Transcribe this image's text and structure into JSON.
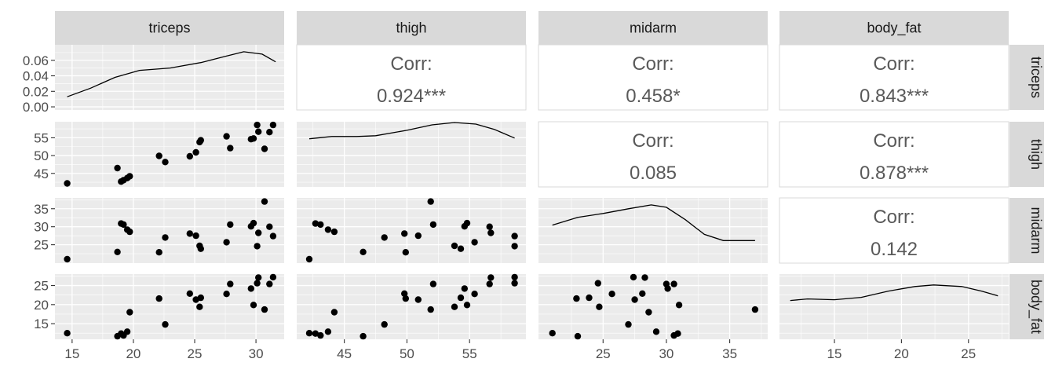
{
  "chart_data": {
    "type": "scatter",
    "title": "",
    "variables": [
      "triceps",
      "thigh",
      "midarm",
      "body_fat"
    ],
    "corr_label": "Corr:",
    "correlations": [
      {
        "row": 0,
        "col": 1,
        "value": "0.924***"
      },
      {
        "row": 0,
        "col": 2,
        "value": "0.458*"
      },
      {
        "row": 0,
        "col": 3,
        "value": "0.843***"
      },
      {
        "row": 1,
        "col": 2,
        "value": "0.085"
      },
      {
        "row": 1,
        "col": 3,
        "value": "0.878***"
      },
      {
        "row": 2,
        "col": 3,
        "value": "0.142"
      }
    ],
    "axes": {
      "triceps": {
        "range": [
          13.6,
          32.3
        ],
        "ticks": [
          15,
          20,
          25,
          30
        ]
      },
      "thigh": {
        "range": [
          41.2,
          59.5
        ],
        "ticks": [
          45,
          50,
          55
        ]
      },
      "midarm": {
        "range": [
          19.9,
          38.0
        ],
        "ticks": [
          25,
          30,
          35
        ]
      },
      "body_fat": {
        "range": [
          10.9,
          28.0
        ],
        "ticks": [
          15,
          20,
          25
        ]
      }
    },
    "density_axis": {
      "range": [
        -0.004,
        0.08
      ],
      "ticks": [
        "0.00",
        "0.02",
        "0.04",
        "0.06"
      ]
    },
    "density_curves": {
      "triceps": [
        [
          14.6,
          0.013
        ],
        [
          16.5,
          0.024
        ],
        [
          18.5,
          0.038
        ],
        [
          20.5,
          0.047
        ],
        [
          23.0,
          0.05
        ],
        [
          25.5,
          0.057
        ],
        [
          27.5,
          0.065
        ],
        [
          29.0,
          0.071
        ],
        [
          30.5,
          0.068
        ],
        [
          31.6,
          0.058
        ]
      ],
      "thigh": [
        [
          42.2,
          0.058
        ],
        [
          44.0,
          0.061
        ],
        [
          46.0,
          0.061
        ],
        [
          47.5,
          0.062
        ],
        [
          50.0,
          0.069
        ],
        [
          52.0,
          0.076
        ],
        [
          53.8,
          0.079
        ],
        [
          55.5,
          0.077
        ],
        [
          57.0,
          0.07
        ],
        [
          58.6,
          0.059
        ]
      ],
      "midarm": [
        [
          21.0,
          0.045
        ],
        [
          23.0,
          0.055
        ],
        [
          25.0,
          0.06
        ],
        [
          27.0,
          0.066
        ],
        [
          28.8,
          0.071
        ],
        [
          30.0,
          0.068
        ],
        [
          31.5,
          0.052
        ],
        [
          33.0,
          0.033
        ],
        [
          34.5,
          0.025
        ],
        [
          37.0,
          0.025
        ]
      ],
      "body_fat": [
        [
          11.7,
          0.046
        ],
        [
          13.0,
          0.048
        ],
        [
          15.0,
          0.047
        ],
        [
          17.0,
          0.05
        ],
        [
          19.0,
          0.058
        ],
        [
          21.0,
          0.064
        ],
        [
          22.4,
          0.066
        ],
        [
          24.5,
          0.064
        ],
        [
          26.0,
          0.058
        ],
        [
          27.2,
          0.052
        ]
      ]
    },
    "records": [
      {
        "triceps": 14.6,
        "thigh": 42.2,
        "midarm": 21.0,
        "body_fat": 12.5
      },
      {
        "triceps": 18.7,
        "thigh": 46.5,
        "midarm": 23.0,
        "body_fat": 11.7
      },
      {
        "triceps": 19.0,
        "thigh": 42.7,
        "midarm": 30.9,
        "body_fat": 12.4
      },
      {
        "triceps": 19.2,
        "thigh": 43.1,
        "midarm": 30.6,
        "body_fat": 11.9
      },
      {
        "triceps": 19.5,
        "thigh": 43.7,
        "midarm": 29.2,
        "body_fat": 12.9
      },
      {
        "triceps": 19.7,
        "thigh": 44.2,
        "midarm": 28.6,
        "body_fat": 18.0
      },
      {
        "triceps": 22.1,
        "thigh": 49.9,
        "midarm": 22.9,
        "body_fat": 21.6
      },
      {
        "triceps": 22.6,
        "thigh": 48.2,
        "midarm": 27.0,
        "body_fat": 14.8
      },
      {
        "triceps": 24.6,
        "thigh": 49.8,
        "midarm": 28.1,
        "body_fat": 22.9
      },
      {
        "triceps": 25.1,
        "thigh": 50.9,
        "midarm": 27.5,
        "body_fat": 21.3
      },
      {
        "triceps": 25.4,
        "thigh": 53.8,
        "midarm": 24.7,
        "body_fat": 19.4
      },
      {
        "triceps": 25.5,
        "thigh": 54.3,
        "midarm": 23.9,
        "body_fat": 21.8
      },
      {
        "triceps": 27.6,
        "thigh": 55.4,
        "midarm": 25.7,
        "body_fat": 22.8
      },
      {
        "triceps": 27.9,
        "thigh": 52.1,
        "midarm": 30.6,
        "body_fat": 25.4
      },
      {
        "triceps": 29.6,
        "thigh": 54.6,
        "midarm": 30.1,
        "body_fat": 24.2
      },
      {
        "triceps": 29.8,
        "thigh": 54.8,
        "midarm": 31.0,
        "body_fat": 19.9
      },
      {
        "triceps": 30.1,
        "thigh": 58.6,
        "midarm": 24.6,
        "body_fat": 25.6
      },
      {
        "triceps": 30.2,
        "thigh": 56.7,
        "midarm": 28.3,
        "body_fat": 27.1
      },
      {
        "triceps": 30.7,
        "thigh": 51.9,
        "midarm": 37.0,
        "body_fat": 18.7
      },
      {
        "triceps": 31.1,
        "thigh": 56.6,
        "midarm": 30.0,
        "body_fat": 25.4
      },
      {
        "triceps": 31.4,
        "thigh": 58.6,
        "midarm": 27.4,
        "body_fat": 27.2
      }
    ]
  }
}
